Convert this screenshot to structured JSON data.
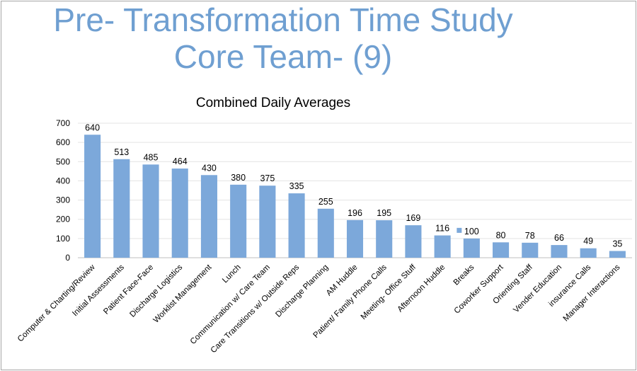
{
  "slide": {
    "title_line1": "Pre- Transformation Time Study",
    "title_line2": "Core Team- (9)"
  },
  "chart_data": {
    "type": "bar",
    "title": "Combined Daily Averages",
    "xlabel": "",
    "ylabel": "",
    "ylim": [
      0,
      700
    ],
    "yticks": [
      0,
      100,
      200,
      300,
      400,
      500,
      600,
      700
    ],
    "grid": true,
    "bar_color": "#7ca8da",
    "legend_marker": {
      "category": "Breaks",
      "color": "#7ca8da"
    },
    "categories": [
      "Computer & Charting/Review",
      "Initial Assessments",
      "Patient Face-Face",
      "Discharge Logistics",
      "Worklist Management",
      "Lunch",
      "Communication w/ Care Team",
      "Care Transitions w/ Outside Reps",
      "Discharge Planning",
      "AM Huddle",
      "Patient/ Family Phone Calls",
      "Meeting- Office Stuff",
      "Afternoon Huddle",
      "Breaks",
      "Coworker Support",
      "Orienting Staff",
      "Vender Education",
      "insurance Calls",
      "Manager Interactions"
    ],
    "values": [
      640,
      513,
      485,
      464,
      430,
      380,
      375,
      335,
      255,
      196,
      195,
      169,
      116,
      100,
      80,
      78,
      66,
      49,
      35
    ]
  }
}
